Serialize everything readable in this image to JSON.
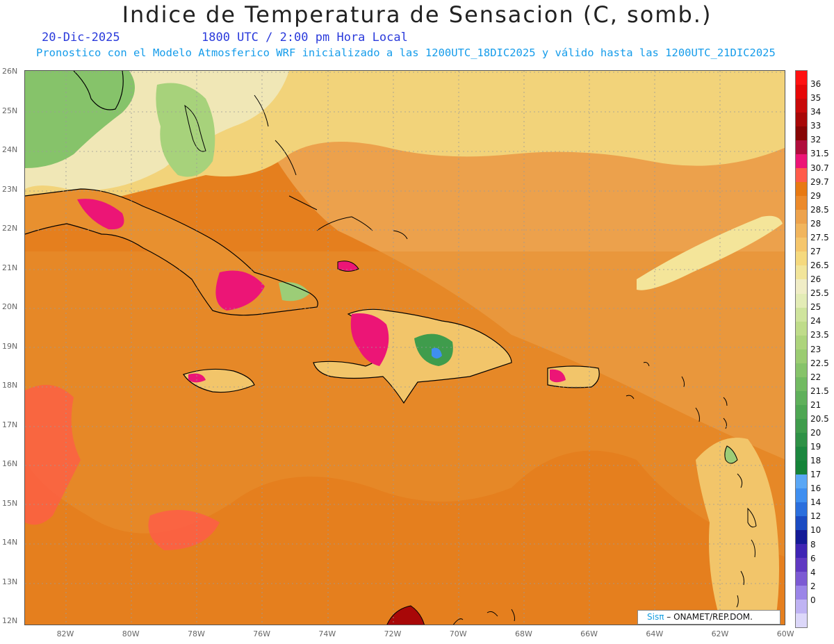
{
  "title": "Indice de Temperatura de Sensacion (C, somb.)",
  "date_label": "20-Dic-2025",
  "time_label": "1800 UTC / 2:00 pm Hora Local",
  "model_info": "Pronostico con el Modelo Atmosferico WRF inicializado a las 1200UTC_18DIC2025 y válido hasta las  1200UTC_21DIC2025",
  "credit": {
    "brand": "Sisπ",
    "text": "– ONAMET/REP.DOM."
  },
  "lat_labels": [
    "26N",
    "25N",
    "24N",
    "23N",
    "22N",
    "21N",
    "20N",
    "19N",
    "18N",
    "17N",
    "16N",
    "15N",
    "14N",
    "13N",
    "12N"
  ],
  "lon_labels": [
    "82W",
    "80W",
    "78W",
    "76W",
    "74W",
    "72W",
    "70W",
    "68W",
    "66W",
    "64W",
    "62W",
    "60W"
  ],
  "colorbar": {
    "labels": [
      "36",
      "35",
      "34",
      "33",
      "32",
      "31.5",
      "30.7",
      "29.7",
      "29",
      "28.5",
      "28",
      "27.5",
      "27",
      "26.5",
      "26",
      "25.5",
      "25",
      "24",
      "23.5",
      "23",
      "22.5",
      "22",
      "21.5",
      "21",
      "20.5",
      "20",
      "19",
      "18",
      "17",
      "16",
      "14",
      "12",
      "10",
      "8",
      "6",
      "4",
      "2",
      "0"
    ],
    "colors": [
      "#ff1212",
      "#e60808",
      "#c80a0a",
      "#a80808",
      "#870505",
      "#b00d3c",
      "#ec1576",
      "#ff5b4a",
      "#e87912",
      "#ec8a2b",
      "#eda24c",
      "#f1b55d",
      "#f5c66c",
      "#f5d97e",
      "#f2e59a",
      "#f0edc6",
      "#e3ecb6",
      "#cfe49d",
      "#bfdc8a",
      "#add47c",
      "#9bcc72",
      "#86c36a",
      "#72ba62",
      "#5fb05b",
      "#4ea653",
      "#3f9c4c",
      "#2e9146",
      "#1c873f",
      "#148338",
      "#5aa7f5",
      "#3f8ff0",
      "#2b6fdd",
      "#1b4bc2",
      "#141a96",
      "#3f25b4",
      "#6039c2",
      "#7c5ad3",
      "#9b85e8",
      "#bfb3f3",
      "#dcd7f9"
    ]
  },
  "colors": {
    "base": "#e57f1e",
    "light": "#eca14c",
    "pale": "#f2dfa0",
    "green": "#9ccd77",
    "magenta": "#ec1576",
    "coast": "#000000",
    "grid": "#9a9a9a"
  }
}
